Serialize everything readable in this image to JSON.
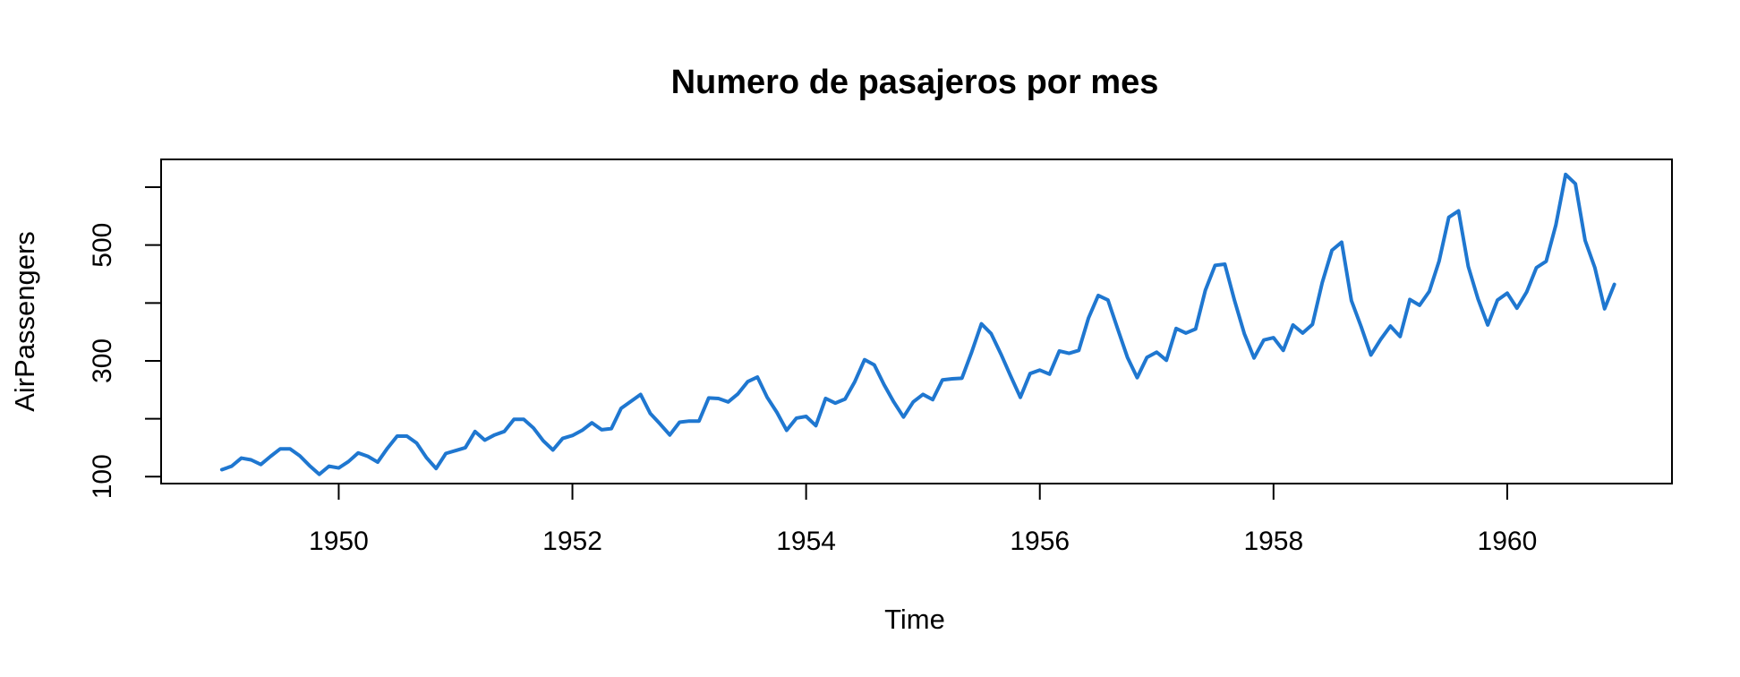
{
  "chart_data": {
    "type": "line",
    "title": "Numero de pasajeros por mes",
    "xlabel": "Time",
    "ylabel": "AirPassengers",
    "xlim": [
      1948.48,
      1961.41
    ],
    "ylim": [
      88,
      648
    ],
    "x_ticks": [
      1950,
      1952,
      1954,
      1956,
      1958,
      1960
    ],
    "y_ticks": [
      100,
      200,
      300,
      400,
      500,
      600
    ],
    "y_tick_labels": [
      "100",
      "",
      "300",
      "",
      "500",
      ""
    ],
    "grid": false,
    "legend": "none",
    "line_color": "#1f77d0",
    "x_start": 1949,
    "x_step_months": 1,
    "series": [
      {
        "values": [
          112,
          118,
          132,
          129,
          121,
          135,
          148,
          148,
          136,
          119,
          104,
          118,
          115,
          126,
          141,
          135,
          125,
          149,
          170,
          170,
          158,
          133,
          114,
          140,
          145,
          150,
          178,
          163,
          172,
          178,
          199,
          199,
          184,
          162,
          146,
          166,
          171,
          180,
          193,
          181,
          183,
          218,
          230,
          242,
          209,
          191,
          172,
          194,
          196,
          196,
          236,
          235,
          229,
          243,
          264,
          272,
          237,
          211,
          180,
          201,
          204,
          188,
          235,
          227,
          234,
          264,
          302,
          293,
          259,
          229,
          203,
          229,
          242,
          233,
          267,
          269,
          270,
          315,
          364,
          347,
          312,
          274,
          237,
          278,
          284,
          277,
          317,
          313,
          318,
          374,
          413,
          405,
          355,
          306,
          271,
          306,
          315,
          301,
          356,
          348,
          355,
          422,
          465,
          467,
          404,
          347,
          305,
          336,
          340,
          318,
          362,
          348,
          363,
          435,
          491,
          505,
          404,
          359,
          310,
          337,
          360,
          342,
          406,
          396,
          420,
          472,
          548,
          559,
          463,
          407,
          362,
          405,
          417,
          391,
          419,
          461,
          472,
          535,
          622,
          606,
          508,
          461,
          390,
          432
        ]
      }
    ]
  }
}
